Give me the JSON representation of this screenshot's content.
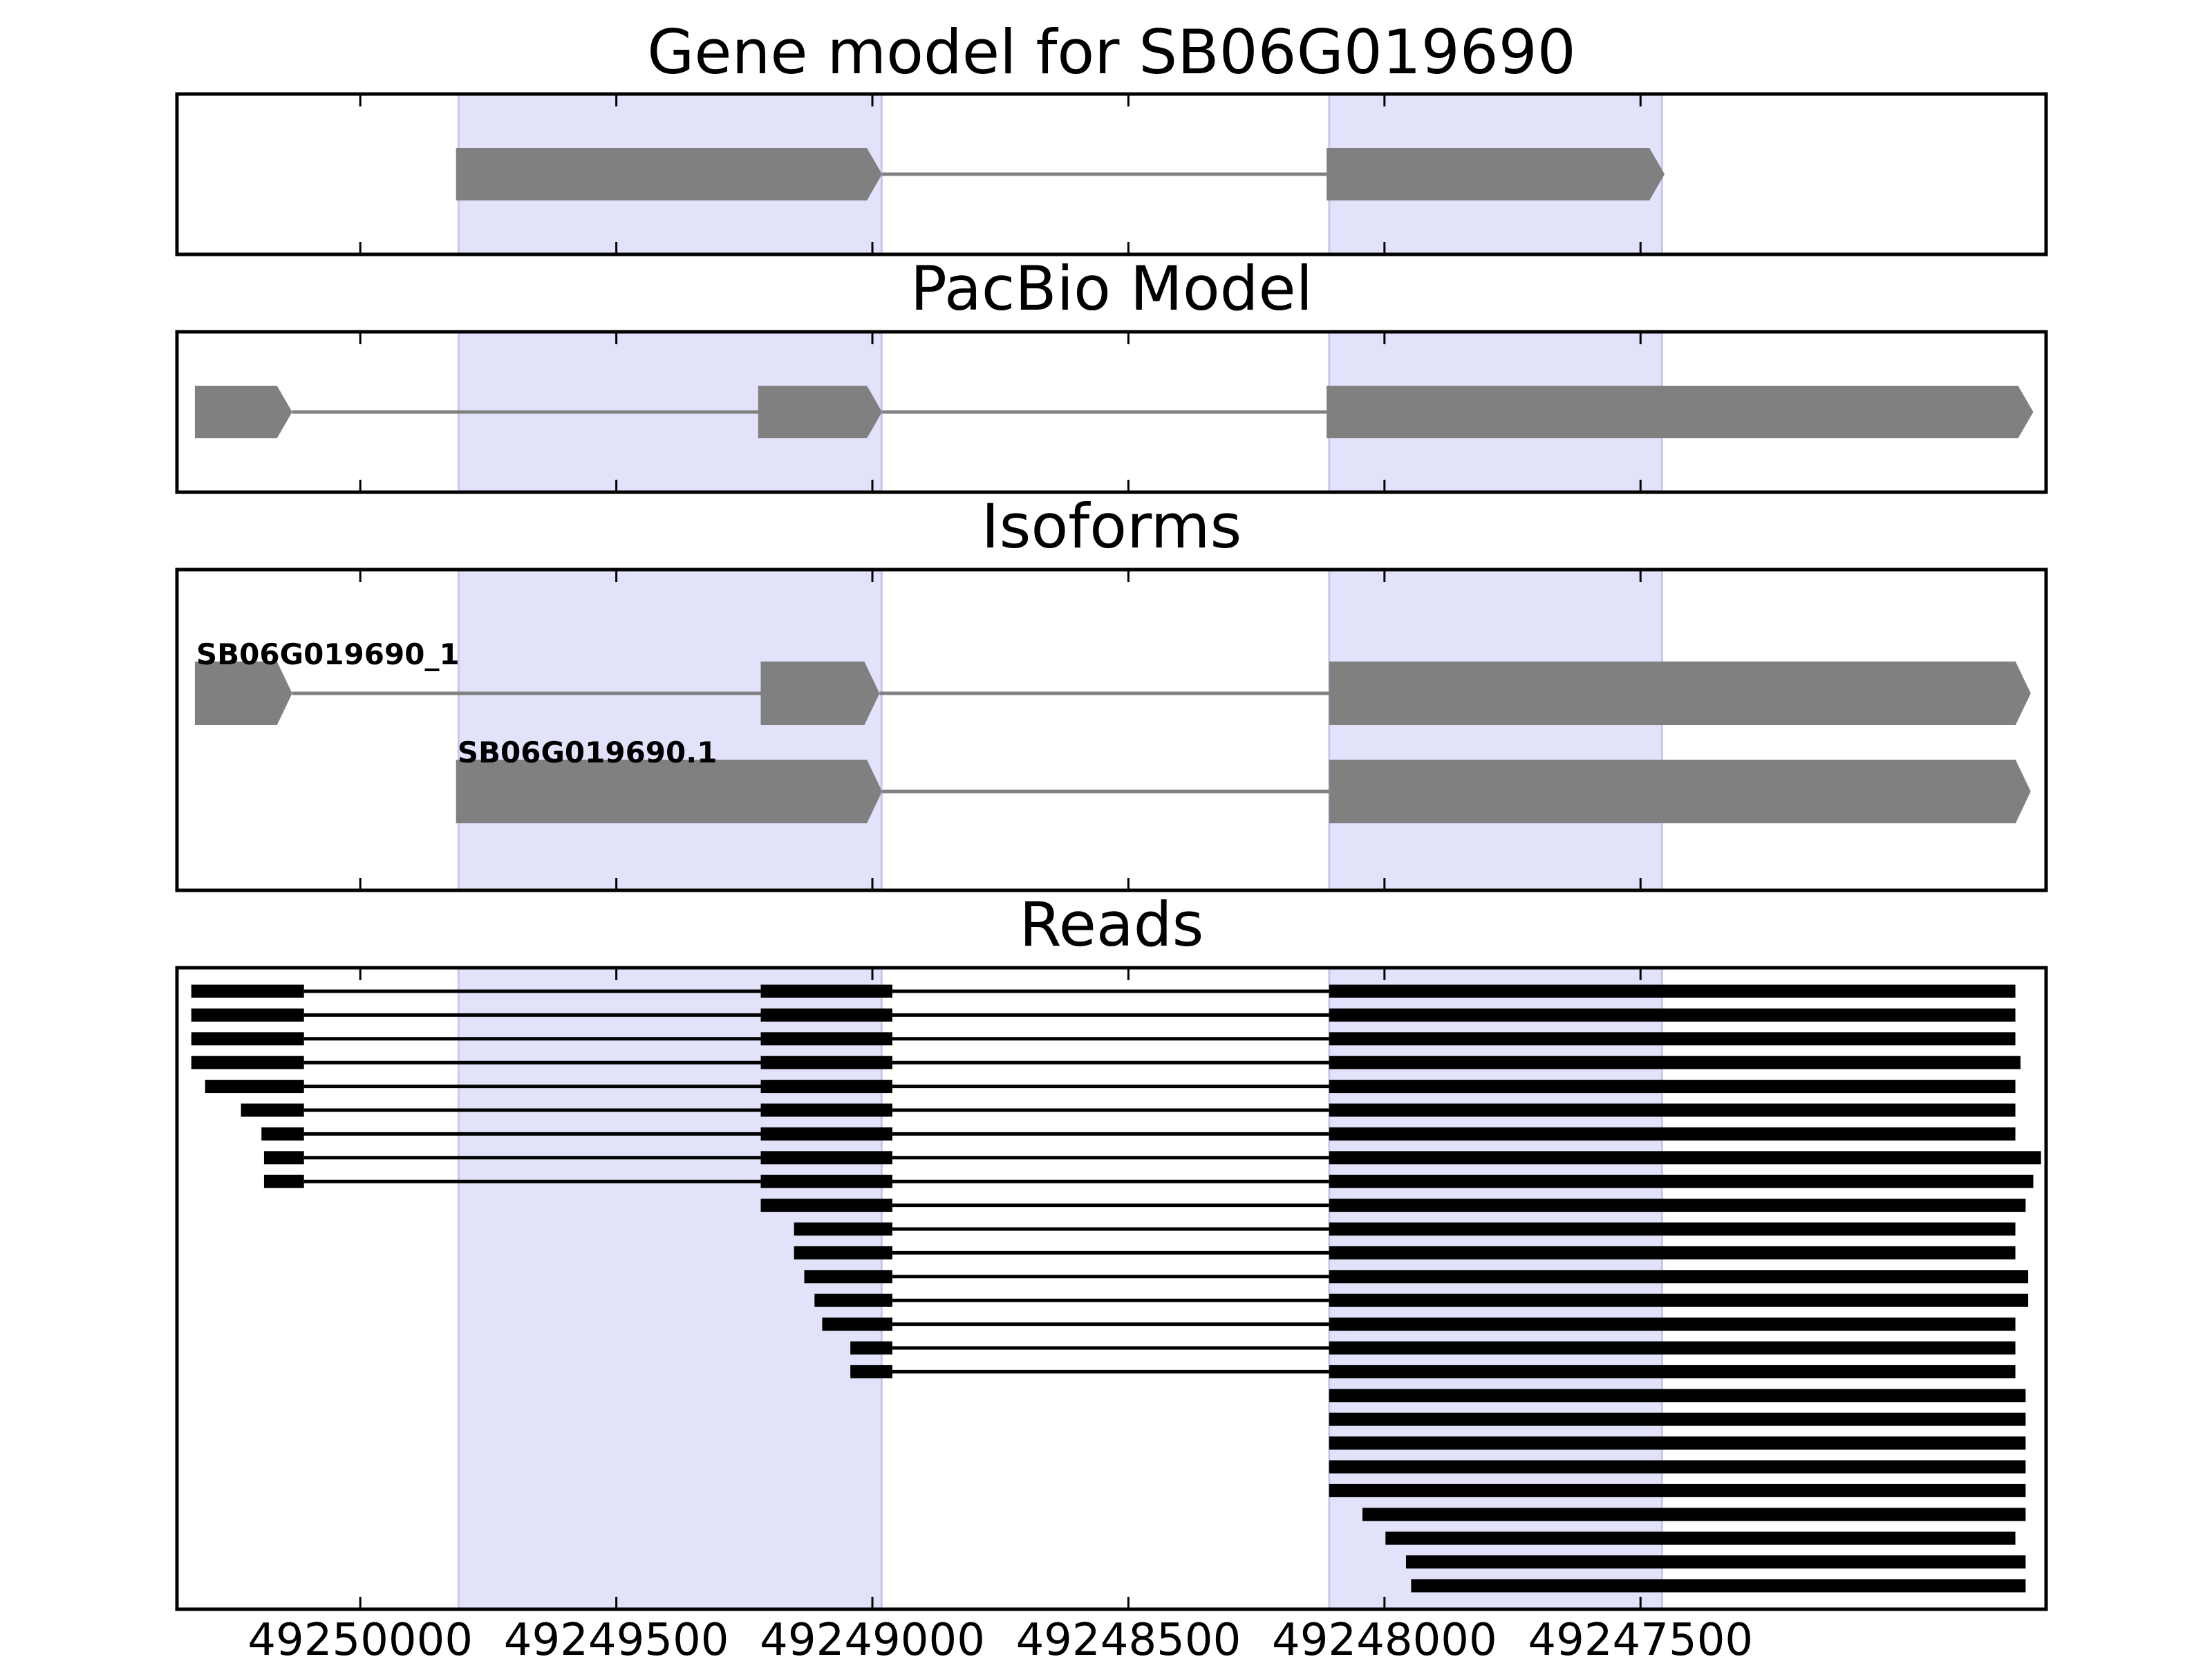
{
  "chart_data": {
    "type": "gene_track",
    "xlim": [
      49250358,
      49246708
    ],
    "x_ticks": [
      49250000,
      49249500,
      49249000,
      49248500,
      49248000,
      49247500
    ],
    "x_tick_labels": [
      "49250000",
      "49249500",
      "49249000",
      "49248500",
      "49248000",
      "49247500"
    ],
    "highlights": [
      [
        49249808,
        49248982
      ],
      [
        49248108,
        49247458
      ]
    ],
    "colors": {
      "exon": "#808080",
      "read": "#000000",
      "highlight": "#e2e2fa",
      "highlight_edge": "#c8c8ef"
    },
    "panels": [
      {
        "title": "Gene model for SB06G019690",
        "tracks": [
          {
            "label": "",
            "exons": [
              [
                49249813,
                49248981
              ],
              [
                49248113,
                49247453
              ]
            ]
          }
        ]
      },
      {
        "title": "PacBio Model",
        "tracks": [
          {
            "label": "",
            "exons": [
              [
                49250323,
                49250133
              ],
              [
                49249223,
                49248981
              ],
              [
                49248113,
                49246733
              ]
            ]
          }
        ]
      },
      {
        "title": "Isoforms",
        "tracks": [
          {
            "label": "SB06G019690_1",
            "exons": [
              [
                49250323,
                49250133
              ],
              [
                49249218,
                49248986
              ],
              [
                49248108,
                49246738
              ]
            ]
          },
          {
            "label": "SB06G019690.1",
            "exons": [
              [
                49249813,
                49248981
              ],
              [
                49248108,
                49246738
              ]
            ]
          }
        ]
      },
      {
        "title": "Reads",
        "tracks": [
          {
            "label": "",
            "exons": [
              [
                49250330,
                49250110
              ],
              [
                49249218,
                49248961
              ],
              [
                49248108,
                49246768
              ]
            ]
          },
          {
            "label": "",
            "exons": [
              [
                49250330,
                49250110
              ],
              [
                49249218,
                49248961
              ],
              [
                49248108,
                49246768
              ]
            ]
          },
          {
            "label": "",
            "exons": [
              [
                49250330,
                49250110
              ],
              [
                49249218,
                49248961
              ],
              [
                49248108,
                49246768
              ]
            ]
          },
          {
            "label": "",
            "exons": [
              [
                49250330,
                49250110
              ],
              [
                49249218,
                49248961
              ],
              [
                49248108,
                49246758
              ]
            ]
          },
          {
            "label": "",
            "exons": [
              [
                49250303,
                49250110
              ],
              [
                49249218,
                49248961
              ],
              [
                49248108,
                49246768
              ]
            ]
          },
          {
            "label": "",
            "exons": [
              [
                49250233,
                49250110
              ],
              [
                49249218,
                49248961
              ],
              [
                49248108,
                49246768
              ]
            ]
          },
          {
            "label": "",
            "exons": [
              [
                49250193,
                49250110
              ],
              [
                49249218,
                49248961
              ],
              [
                49248108,
                49246768
              ]
            ]
          },
          {
            "label": "",
            "exons": [
              [
                49250188,
                49250110
              ],
              [
                49249218,
                49248961
              ],
              [
                49248108,
                49246718
              ]
            ]
          },
          {
            "label": "",
            "exons": [
              [
                49250188,
                49250110
              ],
              [
                49249218,
                49248961
              ],
              [
                49248108,
                49246733
              ]
            ]
          },
          {
            "label": "",
            "exons": [
              [
                49249218,
                49248961
              ],
              [
                49248108,
                49246748
              ]
            ]
          },
          {
            "label": "",
            "exons": [
              [
                49249153,
                49248961
              ],
              [
                49248108,
                49246768
              ]
            ]
          },
          {
            "label": "",
            "exons": [
              [
                49249153,
                49248961
              ],
              [
                49248108,
                49246768
              ]
            ]
          },
          {
            "label": "",
            "exons": [
              [
                49249133,
                49248961
              ],
              [
                49248108,
                49246743
              ]
            ]
          },
          {
            "label": "",
            "exons": [
              [
                49249113,
                49248961
              ],
              [
                49248108,
                49246743
              ]
            ]
          },
          {
            "label": "",
            "exons": [
              [
                49249098,
                49248961
              ],
              [
                49248108,
                49246768
              ]
            ]
          },
          {
            "label": "",
            "exons": [
              [
                49249043,
                49248961
              ],
              [
                49248108,
                49246768
              ]
            ]
          },
          {
            "label": "",
            "exons": [
              [
                49249043,
                49248961
              ],
              [
                49248108,
                49246768
              ]
            ]
          },
          {
            "label": "",
            "exons": [
              [
                49248108,
                49246748
              ]
            ]
          },
          {
            "label": "",
            "exons": [
              [
                49248108,
                49246748
              ]
            ]
          },
          {
            "label": "",
            "exons": [
              [
                49248108,
                49246748
              ]
            ]
          },
          {
            "label": "",
            "exons": [
              [
                49248108,
                49246748
              ]
            ]
          },
          {
            "label": "",
            "exons": [
              [
                49248108,
                49246748
              ]
            ]
          },
          {
            "label": "",
            "exons": [
              [
                49248043,
                49246748
              ]
            ]
          },
          {
            "label": "",
            "exons": [
              [
                49247998,
                49246768
              ]
            ]
          },
          {
            "label": "",
            "exons": [
              [
                49247958,
                49246748
              ]
            ]
          },
          {
            "label": "",
            "exons": [
              [
                49247948,
                49246748
              ]
            ]
          }
        ]
      }
    ]
  }
}
